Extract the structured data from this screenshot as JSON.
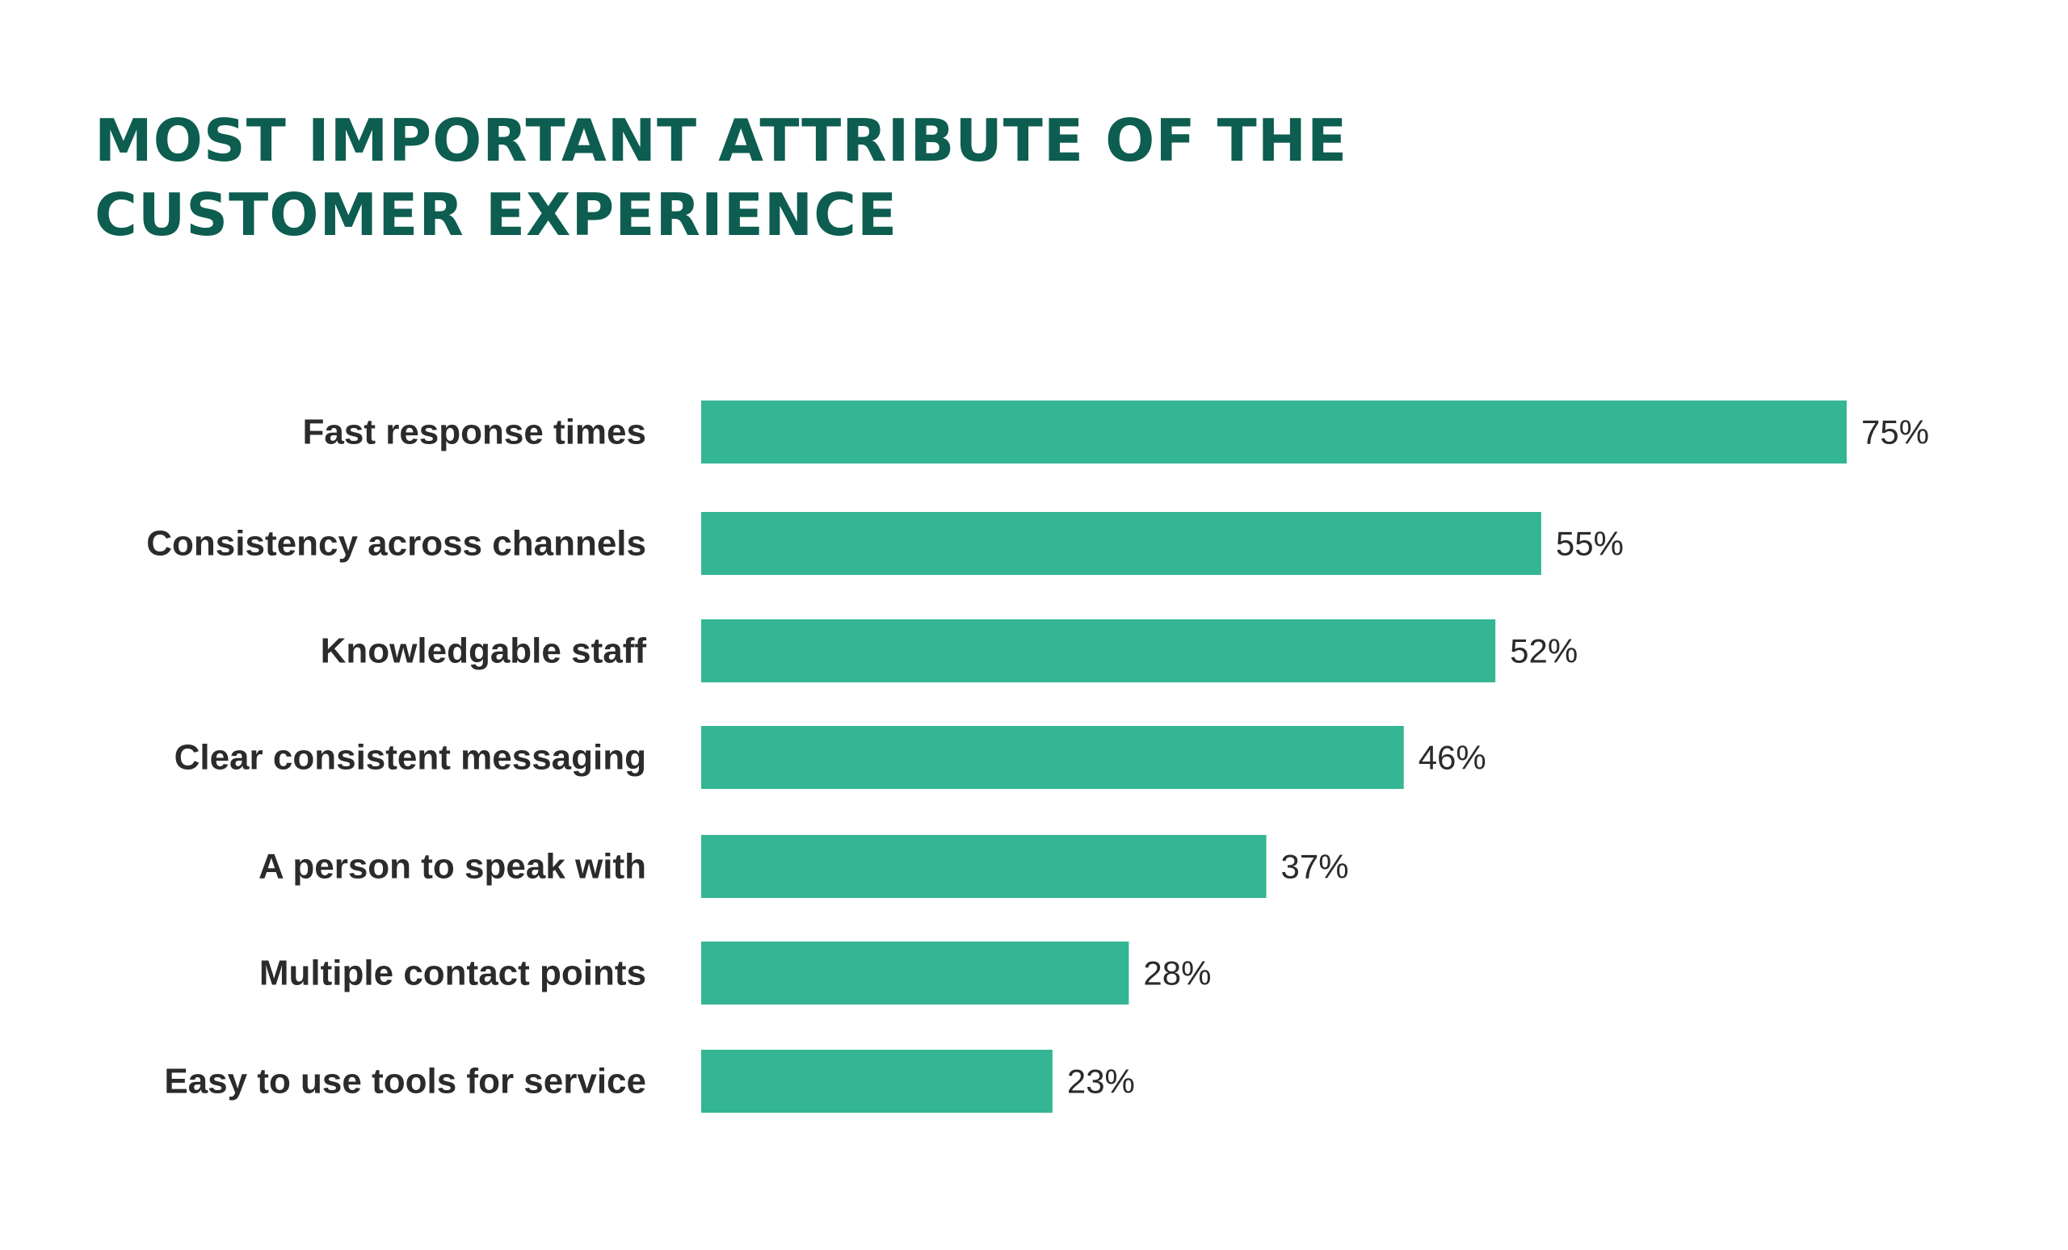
{
  "title": {
    "line1": "MOST IMPORTANT ATTRIBUTE OF THE",
    "line2": "CUSTOMER EXPERIENCE"
  },
  "colors": {
    "bar": "#34b593",
    "title": "#0d5d50",
    "text": "#2b2b2b"
  },
  "chart_data": {
    "type": "bar",
    "orientation": "horizontal",
    "title": "MOST IMPORTANT ATTRIBUTE OF THE CUSTOMER EXPERIENCE",
    "categories": [
      "Fast response times",
      "Consistency across channels",
      "Knowledgable staff",
      "Clear consistent messaging",
      "A person to speak with",
      "Multiple contact points",
      "Easy to use tools for service"
    ],
    "values": [
      75,
      55,
      52,
      46,
      37,
      28,
      23
    ],
    "value_labels": [
      "75%",
      "55%",
      "52%",
      "46%",
      "37%",
      "28%",
      "23%"
    ],
    "unit": "%",
    "xlim": [
      0,
      75
    ],
    "grid": false,
    "legend": "none"
  }
}
